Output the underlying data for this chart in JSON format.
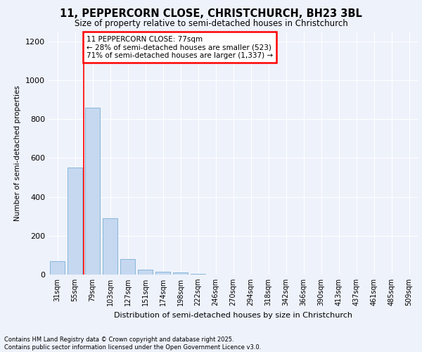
{
  "title_line1": "11, PEPPERCORN CLOSE, CHRISTCHURCH, BH23 3BL",
  "title_line2": "Size of property relative to semi-detached houses in Christchurch",
  "xlabel": "Distribution of semi-detached houses by size in Christchurch",
  "ylabel": "Number of semi-detached properties",
  "categories": [
    "31sqm",
    "55sqm",
    "79sqm",
    "103sqm",
    "127sqm",
    "151sqm",
    "174sqm",
    "198sqm",
    "222sqm",
    "246sqm",
    "270sqm",
    "294sqm",
    "318sqm",
    "342sqm",
    "366sqm",
    "390sqm",
    "413sqm",
    "437sqm",
    "461sqm",
    "485sqm",
    "509sqm"
  ],
  "values": [
    70,
    550,
    860,
    290,
    80,
    25,
    15,
    10,
    3,
    0,
    0,
    0,
    0,
    0,
    0,
    0,
    0,
    0,
    0,
    0,
    0
  ],
  "bar_color": "#c5d8f0",
  "bar_edge_color": "#7aafd4",
  "property_line_x": 1.5,
  "annotation_text": "11 PEPPERCORN CLOSE: 77sqm\n← 28% of semi-detached houses are smaller (523)\n71% of semi-detached houses are larger (1,337) →",
  "ylim": [
    0,
    1250
  ],
  "yticks": [
    0,
    200,
    400,
    600,
    800,
    1000,
    1200
  ],
  "background_color": "#eef2fb",
  "plot_background": "#eef2fb",
  "grid_color": "#ffffff",
  "footer_line1": "Contains HM Land Registry data © Crown copyright and database right 2025.",
  "footer_line2": "Contains public sector information licensed under the Open Government Licence v3.0."
}
